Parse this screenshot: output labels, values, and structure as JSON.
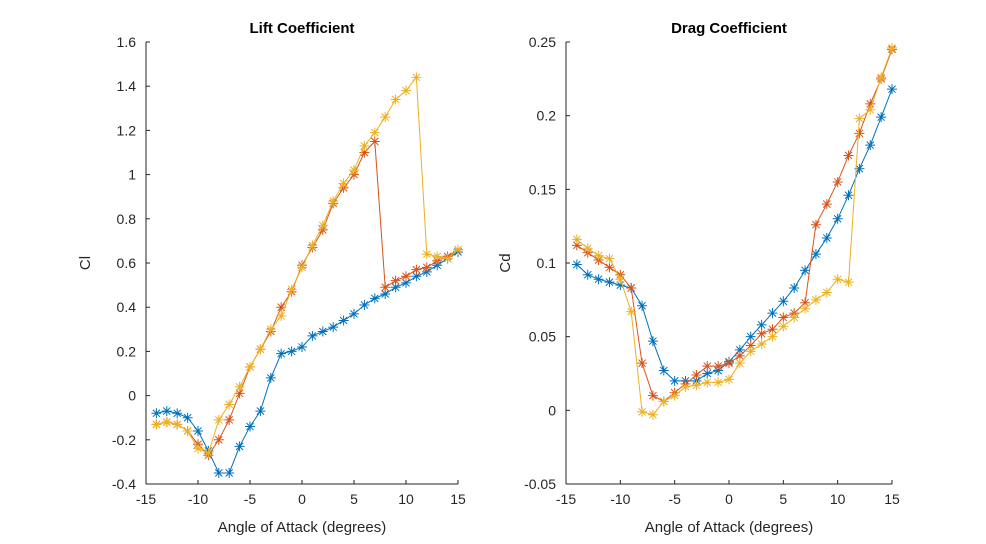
{
  "chart_data": [
    {
      "type": "line",
      "title": "Lift Coefficient",
      "xlabel": "Angle of Attack (degrees)",
      "ylabel": "Cl",
      "xlim": [
        -15,
        15
      ],
      "ylim": [
        -0.4,
        1.6
      ],
      "xticks": [
        "-15",
        "-10",
        "-5",
        "0",
        "5",
        "10",
        "15"
      ],
      "yticks": [
        "-0.4",
        "-0.2",
        "0",
        "0.2",
        "0.4",
        "0.6",
        "0.8",
        "1",
        "1.2",
        "1.4",
        "1.6"
      ],
      "marker": "asterisk",
      "grid": false,
      "x": [
        -14,
        -13,
        -12,
        -11,
        -10,
        -9,
        -8,
        -7,
        -6,
        -5,
        -4,
        -3,
        -2,
        -1,
        0,
        1,
        2,
        3,
        4,
        5,
        6,
        7,
        8,
        9,
        10,
        11,
        12,
        13,
        14,
        15
      ],
      "series": [
        {
          "color": "#0072BD",
          "values": [
            -0.08,
            -0.07,
            -0.08,
            -0.1,
            -0.16,
            -0.25,
            -0.35,
            -0.35,
            -0.23,
            -0.14,
            -0.07,
            0.08,
            0.19,
            0.2,
            0.22,
            0.27,
            0.29,
            0.31,
            0.34,
            0.37,
            0.41,
            0.44,
            0.46,
            0.49,
            0.51,
            0.54,
            0.56,
            0.59,
            0.62,
            0.65
          ]
        },
        {
          "color": "#D95319",
          "values": [
            -0.13,
            -0.12,
            -0.13,
            -0.16,
            -0.22,
            -0.27,
            -0.2,
            -0.11,
            0.01,
            0.13,
            0.21,
            0.29,
            0.4,
            0.47,
            0.59,
            0.67,
            0.75,
            0.87,
            0.94,
            1.0,
            1.1,
            1.15,
            0.49,
            0.52,
            0.54,
            0.57,
            0.58,
            0.61,
            0.63,
            0.66
          ]
        },
        {
          "color": "#EDB120",
          "values": [
            -0.13,
            -0.12,
            -0.13,
            -0.16,
            -0.24,
            -0.26,
            -0.11,
            -0.04,
            0.04,
            0.13,
            0.21,
            0.3,
            0.36,
            0.48,
            0.58,
            0.68,
            0.77,
            0.88,
            0.96,
            1.02,
            1.13,
            1.19,
            1.26,
            1.34,
            1.38,
            1.44,
            0.64,
            0.63,
            0.62,
            0.66
          ]
        }
      ]
    },
    {
      "type": "line",
      "title": "Drag Coefficient",
      "xlabel": "Angle of Attack (degrees)",
      "ylabel": "Cd",
      "xlim": [
        -15,
        15
      ],
      "ylim": [
        -0.05,
        0.25
      ],
      "xticks": [
        "-15",
        "-10",
        "-5",
        "0",
        "5",
        "10",
        "15"
      ],
      "yticks": [
        "-0.05",
        "0",
        "0.05",
        "0.1",
        "0.15",
        "0.2",
        "0.25"
      ],
      "marker": "asterisk",
      "grid": false,
      "x": [
        -14,
        -13,
        -12,
        -11,
        -10,
        -9,
        -8,
        -7,
        -6,
        -5,
        -4,
        -3,
        -2,
        -1,
        0,
        1,
        2,
        3,
        4,
        5,
        6,
        7,
        8,
        9,
        10,
        11,
        12,
        13,
        14,
        15
      ],
      "series": [
        {
          "color": "#0072BD",
          "values": [
            0.099,
            0.092,
            0.089,
            0.087,
            0.085,
            0.083,
            0.071,
            0.047,
            0.027,
            0.02,
            0.02,
            0.02,
            0.025,
            0.027,
            0.033,
            0.041,
            0.05,
            0.058,
            0.066,
            0.074,
            0.083,
            0.095,
            0.106,
            0.117,
            0.13,
            0.146,
            0.164,
            0.18,
            0.199,
            0.218
          ]
        },
        {
          "color": "#D95319",
          "values": [
            0.112,
            0.107,
            0.102,
            0.097,
            0.092,
            0.083,
            0.032,
            0.01,
            0.006,
            0.012,
            0.018,
            0.024,
            0.03,
            0.03,
            0.032,
            0.037,
            0.044,
            0.052,
            0.055,
            0.063,
            0.066,
            0.073,
            0.126,
            0.14,
            0.155,
            0.173,
            0.188,
            0.208,
            0.225,
            0.245
          ]
        },
        {
          "color": "#EDB120",
          "values": [
            0.116,
            0.11,
            0.105,
            0.103,
            0.089,
            0.067,
            -0.001,
            -0.003,
            0.006,
            0.01,
            0.016,
            0.017,
            0.019,
            0.019,
            0.021,
            0.032,
            0.04,
            0.045,
            0.05,
            0.057,
            0.063,
            0.069,
            0.075,
            0.08,
            0.089,
            0.087,
            0.198,
            0.204,
            0.226,
            0.246
          ]
        }
      ]
    }
  ]
}
